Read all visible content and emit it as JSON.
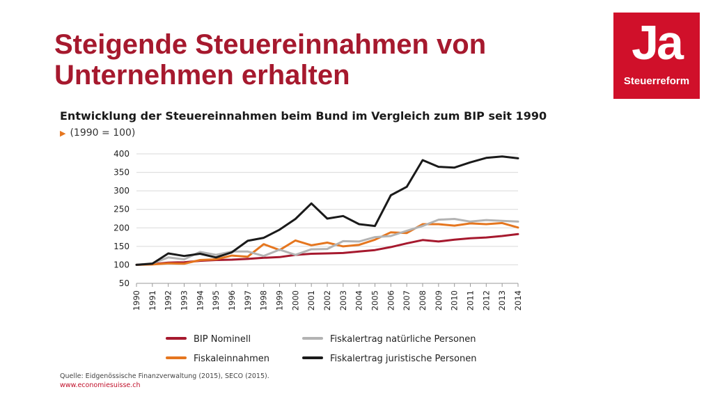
{
  "slide": {
    "title": "Steigende Steuereinnahmen von Unternehmen erhalten"
  },
  "logo": {
    "main": "Ja",
    "sub": "Steuerreform",
    "background_color": "#d0102a"
  },
  "chart_data": {
    "type": "line",
    "title": "Entwicklung der Steuereinnahmen beim Bund im Vergleich zum BIP seit 1990",
    "subtitle": "(1990 = 100)",
    "x": [
      "1990",
      "1991",
      "1992",
      "1993",
      "1994",
      "1995",
      "1996",
      "1997",
      "1998",
      "1999",
      "2000",
      "2001",
      "2002",
      "2003",
      "2004",
      "2005",
      "2006",
      "2007",
      "2008",
      "2009",
      "2010",
      "2011",
      "2012",
      "2013",
      "2014"
    ],
    "ylim": [
      50,
      400
    ],
    "yticks": [
      400,
      350,
      300,
      250,
      200,
      150,
      100,
      50
    ],
    "grid": true,
    "legend_position": "bottom",
    "series": [
      {
        "name": "BIP Nominell",
        "color": "#a6192e",
        "values": [
          100,
          102,
          106,
          107,
          111,
          113,
          114,
          116,
          119,
          121,
          127,
          130,
          131,
          132,
          136,
          140,
          148,
          158,
          167,
          163,
          168,
          172,
          174,
          178,
          183
        ]
      },
      {
        "name": "Fiskaleinnahmen",
        "color": "#e5761f",
        "values": [
          100,
          101,
          104,
          103,
          113,
          115,
          125,
          122,
          156,
          140,
          166,
          153,
          160,
          150,
          154,
          168,
          188,
          186,
          210,
          210,
          206,
          212,
          210,
          213,
          201
        ]
      },
      {
        "name": "Fiskalertrag natürliche Personen",
        "color": "#b3b3b3",
        "values": [
          100,
          104,
          120,
          115,
          135,
          127,
          136,
          136,
          124,
          141,
          127,
          142,
          143,
          164,
          163,
          175,
          178,
          192,
          205,
          222,
          224,
          217,
          221,
          219,
          217
        ]
      },
      {
        "name": "Fiskalertrag juristische Personen",
        "color": "#1a1a1a",
        "values": [
          100,
          103,
          131,
          124,
          130,
          120,
          134,
          165,
          173,
          195,
          224,
          266,
          225,
          232,
          210,
          205,
          288,
          311,
          383,
          365,
          363,
          377,
          389,
          393,
          388
        ]
      }
    ]
  },
  "source": {
    "text": "Quelle: Eidgenössische Finanzverwaltung (2015), SECO (2015).",
    "url": "www.economiesuisse.ch"
  }
}
